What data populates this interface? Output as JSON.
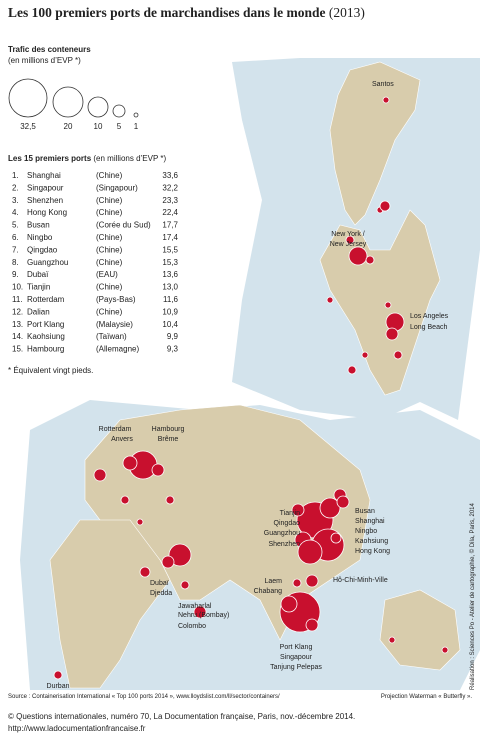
{
  "header": {
    "title": "Les 100 premiers ports de marchandises dans le monde",
    "year": "(2013)"
  },
  "legend": {
    "title": "Trafic des conteneurs",
    "subtitle": "(en millions d’EVP *)",
    "sizes": [
      "32,5",
      "20",
      "10",
      "5",
      "1"
    ]
  },
  "ranking": {
    "title": "Les 15 premiers ports",
    "unit": "(en millions d’EVP *)",
    "rows": [
      [
        "1.",
        "Shanghai",
        "(Chine)",
        "33,6"
      ],
      [
        "2.",
        "Singapour",
        "(Singapour)",
        "32,2"
      ],
      [
        "3.",
        "Shenzhen",
        "(Chine)",
        "23,3"
      ],
      [
        "4.",
        "Hong Kong",
        "(Chine)",
        "22,4"
      ],
      [
        "5.",
        "Busan",
        "(Corée du Sud)",
        "17,7"
      ],
      [
        "6.",
        "Ningbo",
        "(Chine)",
        "17,4"
      ],
      [
        "7.",
        "Qingdao",
        "(Chine)",
        "15,5"
      ],
      [
        "8.",
        "Guangzhou",
        "(Chine)",
        "15,3"
      ],
      [
        "9.",
        "Dubaï",
        "(EAU)",
        "13,6"
      ],
      [
        "10.",
        "Tianjin",
        "(Chine)",
        "13,0"
      ],
      [
        "11.",
        "Rotterdam",
        "(Pays-Bas)",
        "11,6"
      ],
      [
        "12.",
        "Dalian",
        "(Chine)",
        "10,9"
      ],
      [
        "13.",
        "Port Klang",
        "(Malaysie)",
        "10,4"
      ],
      [
        "14.",
        "Kaohsiung",
        "(Taïwan)",
        "9,9"
      ],
      [
        "15.",
        "Hambourg",
        "(Allemagne)",
        "9,3"
      ]
    ]
  },
  "footnote": "* Équivalent vingt pieds.",
  "labels": [
    "Santos",
    "New York /",
    "New Jersey",
    "Los Angeles",
    "Long Beach",
    "Rotterdam",
    "Anvers",
    "Hambourg",
    "Brême",
    "Busan",
    "Shanghai",
    "Ningbo",
    "Kaohsiung",
    "Hong Kong",
    "Tianjin",
    "Qingdao",
    "Guangzhou",
    "Shenzhen",
    "Laem",
    "Chabang",
    "Hô-Chi-Minh-Ville",
    "Dubaï",
    "Djedda",
    "Jawaharlal",
    "Nehru (Bombay)",
    "Colombo",
    "Port Klang",
    "Singapour",
    "Tanjung Pelepas",
    "Durban"
  ],
  "source": "Source : Containerisation International « Top 100 ports 2014 », www.lloydslist.com/ll/sector/containers/",
  "projection": "Projection Waterman « Butterfly ».",
  "copyright": "© Questions internationales, numéro 70, La Documentation française, Paris, nov.-décembre 2014.",
  "url": "http://www.ladocumentationfrancaise.fr",
  "credit": "Réalisation : Sciences Po - Atelier de cartographie, © Dila, Paris, 2014"
}
